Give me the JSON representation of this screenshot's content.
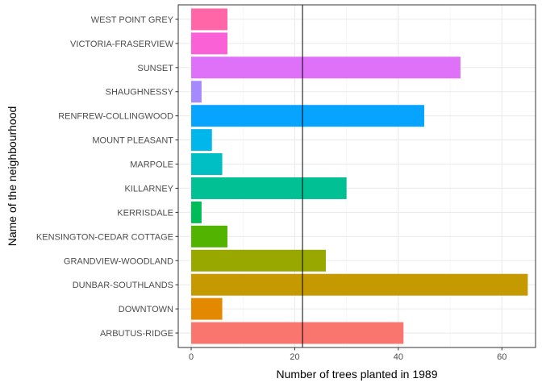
{
  "chart_data": {
    "type": "bar",
    "orientation": "horizontal",
    "xlabel": "Number of trees planted in 1989",
    "ylabel": "Name of the neighbourhood",
    "xlim": [
      -2.5,
      66.5
    ],
    "xticks": [
      0,
      20,
      40,
      60
    ],
    "grid": true,
    "legend": "none",
    "reference_line": {
      "axis": "x",
      "value": 21.5,
      "color": "#000000"
    },
    "categories": [
      "ARBUTUS-RIDGE",
      "DOWNTOWN",
      "DUNBAR-SOUTHLANDS",
      "GRANDVIEW-WOODLAND",
      "KENSINGTON-CEDAR COTTAGE",
      "KERRISDALE",
      "KILLARNEY",
      "MARPOLE",
      "MOUNT PLEASANT",
      "RENFREW-COLLINGWOOD",
      "SHAUGHNESSY",
      "SUNSET",
      "VICTORIA-FRASERVIEW",
      "WEST POINT GREY"
    ],
    "values": [
      41,
      6,
      65,
      26,
      7,
      2,
      30,
      6,
      4,
      45,
      2,
      52,
      7,
      7
    ],
    "colors": [
      "#F8766D",
      "#E38900",
      "#C49A00",
      "#99A800",
      "#53B400",
      "#00BC56",
      "#00C094",
      "#00BFC4",
      "#00B6EB",
      "#06A4FF",
      "#A58AFF",
      "#DF70F8",
      "#FB61D7",
      "#FF66A8"
    ]
  }
}
